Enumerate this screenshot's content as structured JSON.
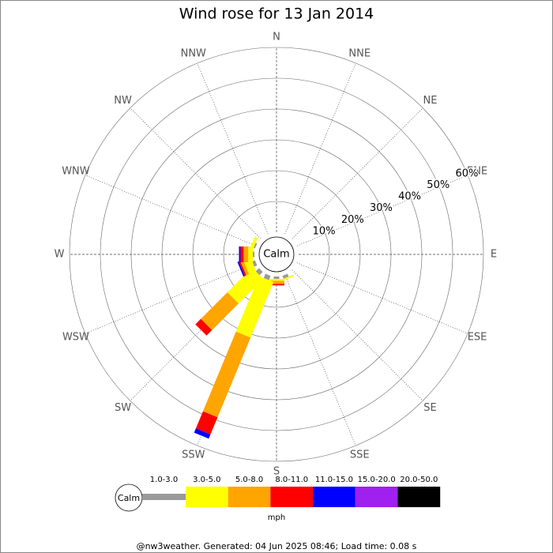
{
  "chart_data": {
    "type": "windrose",
    "title": "Wind rose for 13 Jan 2014",
    "directions": [
      "N",
      "NNE",
      "NE",
      "ENE",
      "E",
      "ESE",
      "SE",
      "SSE",
      "S",
      "SSW",
      "SW",
      "WSW",
      "W",
      "WNW",
      "NW",
      "NNW"
    ],
    "center_label": "Calm",
    "rlim": [
      0,
      60
    ],
    "rticks": [
      {
        "value": 10,
        "label": "10%"
      },
      {
        "value": 20,
        "label": "20%"
      },
      {
        "value": 30,
        "label": "30%"
      },
      {
        "value": 40,
        "label": "40%"
      },
      {
        "value": 50,
        "label": "50%"
      },
      {
        "value": 60,
        "label": "60%"
      }
    ],
    "legend_unit": "mph",
    "series": [
      {
        "name": "1.0-3.0",
        "color": "#999999",
        "values": [
          0,
          0,
          0,
          0,
          0,
          0,
          0,
          1,
          0.8,
          1.5,
          1.5,
          1,
          0.5,
          0.5,
          0,
          0
        ]
      },
      {
        "name": "3.0-5.0",
        "color": "#ffff00",
        "values": [
          0,
          0,
          0,
          0,
          0,
          0,
          0,
          0.5,
          0.6,
          19.5,
          11.3,
          2.5,
          1.5,
          1,
          0,
          0
        ]
      },
      {
        "name": "5.0-8.0",
        "color": "#ffa500",
        "values": [
          0,
          0,
          0,
          0,
          0,
          0,
          0,
          0,
          1,
          28,
          12.2,
          1,
          1.5,
          0,
          0,
          0
        ]
      },
      {
        "name": "8.0-11.0",
        "color": "#ff0000",
        "values": [
          0,
          0,
          0,
          0,
          0,
          0,
          0,
          0,
          0.5,
          6,
          2.5,
          0.5,
          1,
          0,
          0,
          0
        ]
      },
      {
        "name": "11.0-15.0",
        "color": "#0000ff",
        "values": [
          0,
          0,
          0,
          0,
          0,
          0,
          0,
          0,
          0,
          1.5,
          0,
          0.5,
          0.5,
          0,
          0,
          0
        ]
      },
      {
        "name": "15.0-20.0",
        "color": "#a020f0",
        "values": [
          0,
          0,
          0,
          0,
          0,
          0,
          0,
          0,
          0,
          0,
          0,
          0,
          0,
          0,
          0,
          0
        ]
      },
      {
        "name": "20.0-50.0",
        "color": "#000000",
        "values": [
          0,
          0,
          0,
          0,
          0,
          0,
          0,
          0,
          0,
          0,
          0,
          0,
          0,
          0,
          0,
          0
        ]
      }
    ]
  },
  "footer": "@nw3weather. Generated: 04 Jun 2025 08:46; Load time: 0.08 s"
}
